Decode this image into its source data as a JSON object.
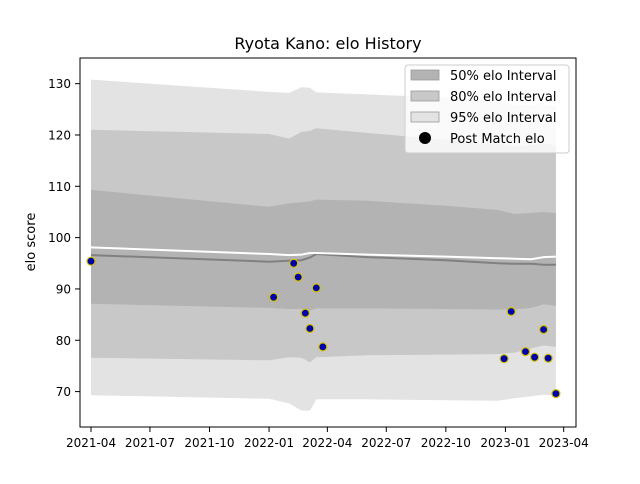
{
  "chart_data": {
    "type": "area",
    "title": "Ryota Kano: elo History",
    "xlabel": "",
    "ylabel": "elo score",
    "x_ticks": [
      "2021-04",
      "2021-07",
      "2021-10",
      "2022-01",
      "2022-04",
      "2022-07",
      "2022-10",
      "2023-01",
      "2023-04"
    ],
    "x_range": [
      "2021-03-15",
      "2023-04-20"
    ],
    "y_ticks": [
      70,
      80,
      90,
      100,
      110,
      120,
      130
    ],
    "ylim": [
      63.1,
      135.0
    ],
    "grid": false,
    "legend_position": "top-right",
    "legend": [
      {
        "label": "50% elo Interval",
        "swatch": "band50"
      },
      {
        "label": "80% elo Interval",
        "swatch": "band80"
      },
      {
        "label": "95% elo Interval",
        "swatch": "band95"
      },
      {
        "label": "Post Match elo",
        "swatch": "dot"
      }
    ],
    "colors": {
      "band50": "#b3b3b3",
      "band80": "#c8c8c8",
      "band95": "#e3e3e3",
      "mean_line": "#808080",
      "upper_line": "#ffffff",
      "dot_fill": "#0000aa",
      "dot_edge": "#d4c000"
    },
    "series": [
      {
        "name": "50% elo Interval",
        "x": [
          "2021-04-01",
          "2022-01-01",
          "2022-02-01",
          "2022-02-20",
          "2022-03-05",
          "2022-03-15",
          "2022-06-01",
          "2022-10-01",
          "2022-12-20",
          "2023-01-15",
          "2023-02-10",
          "2023-03-01",
          "2023-03-20"
        ],
        "low": [
          87.1,
          86.3,
          86.1,
          86.1,
          85.8,
          86.2,
          86.2,
          86.1,
          86.0,
          86.0,
          86.3,
          87.0,
          86.7
        ],
        "high": [
          109.3,
          106.0,
          106.7,
          106.9,
          107.1,
          107.4,
          107.2,
          106.2,
          105.4,
          104.6,
          104.8,
          105.0,
          104.8
        ]
      },
      {
        "name": "80% elo Interval",
        "x": [
          "2021-04-01",
          "2022-01-01",
          "2022-02-01",
          "2022-02-20",
          "2022-03-05",
          "2022-03-15",
          "2022-06-01",
          "2022-10-01",
          "2022-12-20",
          "2023-01-15",
          "2023-02-10",
          "2023-03-01",
          "2023-03-20"
        ],
        "low": [
          76.6,
          76.1,
          76.7,
          76.6,
          75.7,
          76.7,
          77.1,
          77.2,
          77.3,
          77.6,
          78.4,
          79.0,
          78.7
        ],
        "high": [
          121.0,
          120.2,
          119.3,
          120.6,
          120.8,
          121.3,
          120.4,
          119.1,
          118.3,
          117.8,
          118.0,
          118.4,
          118.0
        ]
      },
      {
        "name": "95% elo Interval",
        "x": [
          "2021-04-01",
          "2022-01-01",
          "2022-02-01",
          "2022-02-20",
          "2022-03-05",
          "2022-03-15",
          "2022-06-01",
          "2022-10-01",
          "2022-12-20",
          "2023-01-15",
          "2023-02-10",
          "2023-03-01",
          "2023-03-20"
        ],
        "low": [
          69.3,
          68.6,
          67.7,
          66.3,
          66.3,
          68.5,
          68.5,
          68.3,
          68.2,
          68.7,
          69.1,
          69.4,
          69.3
        ],
        "high": [
          130.8,
          128.4,
          128.2,
          129.3,
          129.2,
          128.3,
          127.9,
          127.3,
          126.5,
          125.9,
          125.9,
          126.0,
          125.7
        ]
      },
      {
        "name": "mean",
        "x": [
          "2021-04-01",
          "2022-01-01",
          "2022-02-01",
          "2022-02-20",
          "2022-03-05",
          "2022-03-15",
          "2022-06-01",
          "2022-10-01",
          "2022-12-20",
          "2023-01-15",
          "2023-02-10",
          "2023-03-01",
          "2023-03-20"
        ],
        "values": [
          96.6,
          95.3,
          95.5,
          95.6,
          96.1,
          96.8,
          96.2,
          95.6,
          95.0,
          94.9,
          94.9,
          94.7,
          94.7
        ]
      },
      {
        "name": "upper",
        "x": [
          "2021-04-01",
          "2022-01-01",
          "2022-02-01",
          "2022-02-20",
          "2022-03-05",
          "2022-03-15",
          "2022-06-01",
          "2022-10-01",
          "2022-12-20",
          "2023-01-15",
          "2023-02-10",
          "2023-03-01",
          "2023-03-20"
        ],
        "values": [
          98.1,
          96.8,
          96.6,
          96.7,
          97.0,
          97.0,
          96.7,
          96.3,
          96.0,
          95.9,
          95.8,
          96.2,
          96.3
        ]
      },
      {
        "name": "Post Match elo",
        "x": [
          "2021-04-01",
          "2022-01-08",
          "2022-02-08",
          "2022-02-15",
          "2022-02-26",
          "2022-03-05",
          "2022-03-15",
          "2022-03-25",
          "2022-12-30",
          "2023-01-10",
          "2023-02-01",
          "2023-02-15",
          "2023-03-01",
          "2023-03-08",
          "2023-03-20"
        ],
        "values": [
          95.4,
          88.4,
          95.0,
          92.3,
          85.3,
          82.3,
          90.2,
          78.7,
          76.4,
          85.6,
          77.8,
          76.7,
          82.1,
          76.5,
          69.6
        ]
      }
    ]
  }
}
